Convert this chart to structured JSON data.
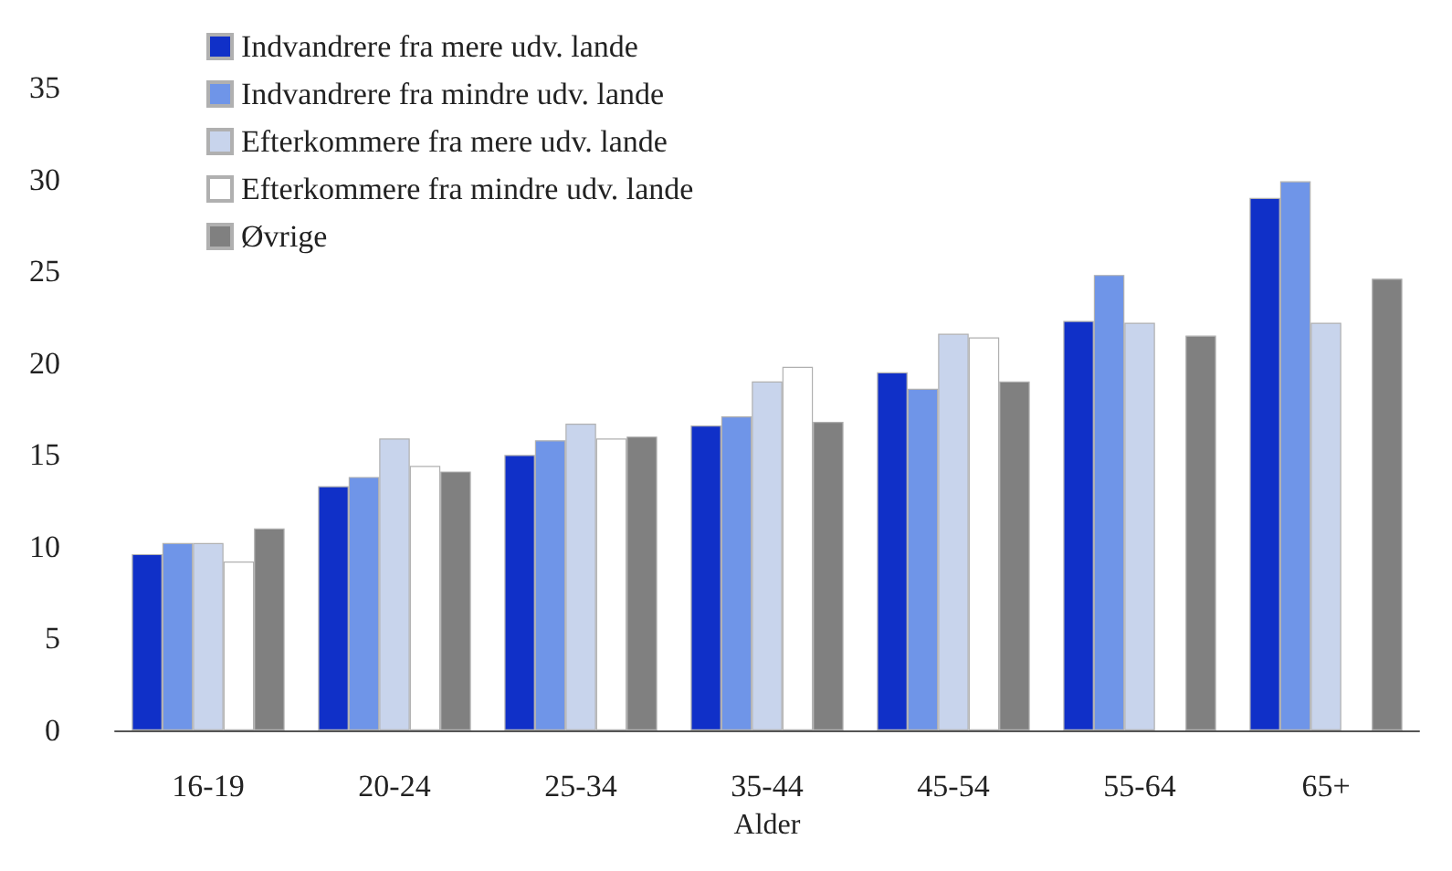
{
  "chart_data": {
    "type": "bar",
    "xlabel": "Alder",
    "categories": [
      "16-19",
      "20-24",
      "25-34",
      "35-44",
      "45-54",
      "55-64",
      "65+"
    ],
    "series": [
      {
        "name": "Indvandrere fra mere udv. lande",
        "color": "#1030c8",
        "values": [
          9.6,
          13.3,
          15.0,
          16.6,
          19.5,
          22.3,
          29.0
        ]
      },
      {
        "name": "Indvandrere fra mindre udv. lande",
        "color": "#6f95e8",
        "values": [
          10.2,
          13.8,
          15.8,
          17.1,
          18.6,
          24.8,
          29.9
        ]
      },
      {
        "name": "Efterkommere fra mere udv. lande",
        "color": "#c8d4ec",
        "values": [
          10.2,
          15.9,
          16.7,
          19.0,
          21.6,
          22.2,
          22.2
        ]
      },
      {
        "name": "Efterkommere fra mindre udv. lande",
        "color": "#ffffff",
        "values": [
          9.2,
          14.4,
          15.9,
          19.8,
          21.4,
          null,
          null
        ]
      },
      {
        "name": "Øvrige",
        "color": "#808080",
        "values": [
          11.0,
          14.1,
          16.0,
          16.8,
          19.0,
          21.5,
          24.6
        ]
      }
    ],
    "ylim": [
      0,
      35
    ],
    "yticks": [
      0,
      5,
      10,
      15,
      20,
      25,
      30,
      35
    ],
    "grid": false,
    "legend": "top left"
  }
}
